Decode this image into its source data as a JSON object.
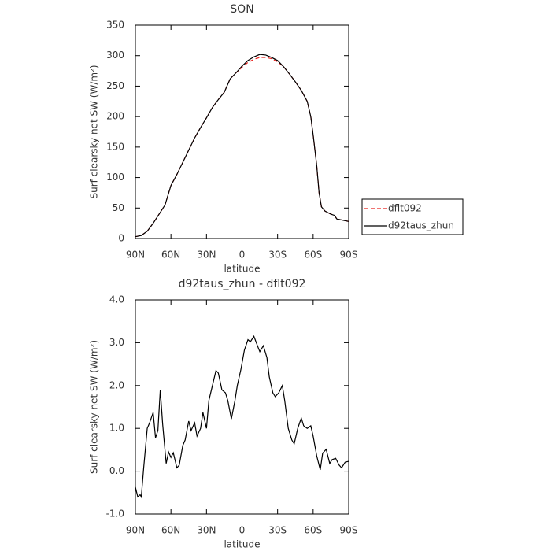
{
  "chart_data": [
    {
      "type": "line",
      "title": "SON",
      "xlabel": "latitude",
      "ylabel": "Surf clearsky net SW (W/m²)",
      "x": [
        90,
        85,
        80,
        75,
        70,
        65,
        60,
        55,
        50,
        45,
        40,
        35,
        30,
        25,
        20,
        15,
        10,
        5,
        0,
        -5,
        -10,
        -15,
        -20,
        -25,
        -30,
        -35,
        -40,
        -45,
        -50,
        -55,
        -58,
        -60,
        -63,
        -65,
        -67,
        -70,
        -75,
        -78,
        -80,
        -85,
        -90
      ],
      "series": [
        {
          "name": "dflt092",
          "color": "#e8201c",
          "dash": true,
          "values": [
            3,
            5,
            12,
            25,
            40,
            55,
            87,
            105,
            125,
            145,
            165,
            182,
            198,
            215,
            228,
            240,
            262,
            272,
            281,
            289,
            294,
            297,
            297,
            295,
            290,
            282,
            270,
            257,
            243,
            225,
            200,
            170,
            120,
            75,
            52,
            45,
            40,
            38,
            32,
            30,
            28
          ]
        },
        {
          "name": "d92taus_zhun",
          "color": "#000000",
          "dash": false,
          "values": [
            3,
            5,
            12,
            25,
            40,
            55,
            87,
            105,
            125,
            145,
            165,
            182,
            198,
            215,
            228,
            240,
            262,
            272,
            283,
            292,
            298,
            302,
            301,
            297,
            292,
            282,
            270,
            257,
            243,
            225,
            200,
            170,
            120,
            75,
            52,
            45,
            40,
            38,
            32,
            30,
            28
          ]
        }
      ],
      "xlim": [
        90,
        -90
      ],
      "xticks": [
        {
          "value": 90,
          "label": "90N"
        },
        {
          "value": 60,
          "label": "60N"
        },
        {
          "value": 30,
          "label": "30N"
        },
        0,
        {
          "value": -30,
          "label": "30S"
        },
        {
          "value": -60,
          "label": "60S"
        },
        {
          "value": -90,
          "label": "90S"
        }
      ],
      "ylim": [
        0,
        350
      ],
      "yticks": [
        0,
        50,
        100,
        150,
        200,
        250,
        300,
        350
      ],
      "legend": "right"
    },
    {
      "type": "line",
      "title": "d92taus_zhun - dflt092",
      "xlabel": "latitude",
      "ylabel": "Surf clearsky net SW (W/m²)",
      "x": [
        90,
        88,
        86,
        85,
        83,
        80,
        78,
        75,
        73,
        71,
        69,
        67,
        64,
        62,
        60,
        58,
        55,
        53,
        50,
        48,
        45,
        43,
        40,
        38,
        35,
        33,
        30,
        28,
        25,
        22,
        20,
        17,
        14,
        12,
        9,
        6,
        4,
        1,
        -2,
        -5,
        -7,
        -10,
        -13,
        -15,
        -18,
        -21,
        -23,
        -26,
        -28,
        -31,
        -34,
        -36,
        -39,
        -42,
        -44,
        -47,
        -50,
        -52,
        -55,
        -58,
        -60,
        -63,
        -66,
        -68,
        -71,
        -74,
        -76,
        -79,
        -82,
        -84,
        -87,
        -90
      ],
      "series": [
        {
          "color": "#000000",
          "dash": false,
          "values": [
            -0.37,
            -0.6,
            -0.55,
            -0.6,
            0.08,
            1.0,
            1.13,
            1.37,
            0.78,
            0.95,
            1.9,
            1.1,
            0.18,
            0.45,
            0.32,
            0.43,
            0.08,
            0.14,
            0.6,
            0.73,
            1.17,
            0.95,
            1.13,
            0.82,
            1.0,
            1.37,
            1.0,
            1.65,
            2.0,
            2.35,
            2.29,
            1.9,
            1.83,
            1.65,
            1.22,
            1.65,
            2.0,
            2.37,
            2.83,
            3.07,
            3.02,
            3.15,
            2.93,
            2.79,
            2.93,
            2.65,
            2.2,
            1.83,
            1.74,
            1.83,
            2.0,
            1.65,
            1.0,
            0.73,
            0.64,
            1.0,
            1.24,
            1.06,
            1.0,
            1.06,
            0.82,
            0.36,
            0.03,
            0.42,
            0.51,
            0.18,
            0.27,
            0.3,
            0.14,
            0.08,
            0.21,
            0.23
          ]
        }
      ],
      "xlim": [
        90,
        -90
      ],
      "xticks": [
        {
          "value": 90,
          "label": "90N"
        },
        {
          "value": 60,
          "label": "60N"
        },
        {
          "value": 30,
          "label": "30N"
        },
        0,
        {
          "value": -30,
          "label": "30S"
        },
        {
          "value": -60,
          "label": "60S"
        },
        {
          "value": -90,
          "label": "90S"
        }
      ],
      "ylim": [
        -1,
        4
      ],
      "yticks": [
        {
          "value": -1,
          "label": "-1.0"
        },
        {
          "value": 0,
          "label": "0.0"
        },
        {
          "value": 1,
          "label": "1.0"
        },
        {
          "value": 2,
          "label": "2.0"
        },
        {
          "value": 3,
          "label": "3.0"
        },
        {
          "value": 4,
          "label": "4.0"
        }
      ]
    }
  ]
}
